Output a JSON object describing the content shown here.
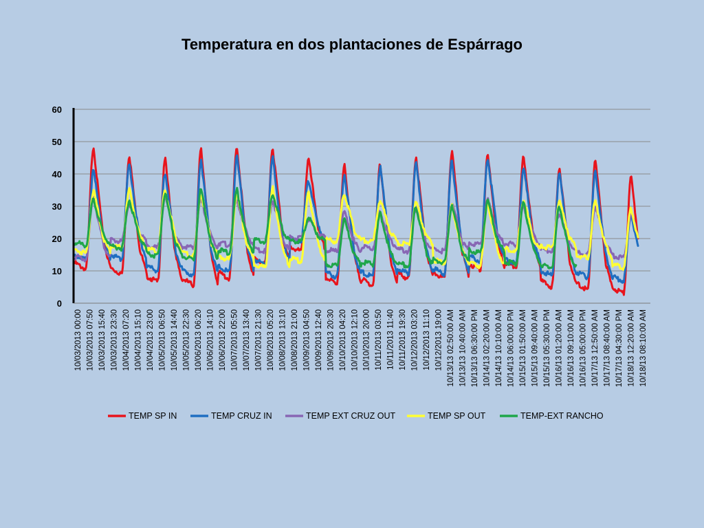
{
  "slide": {
    "title": "Temperatura  en dos plantaciones de Espárrago"
  },
  "chart_data": {
    "type": "line",
    "title": "Temperatura  en dos plantaciones de Espárrago",
    "xlabel": "",
    "ylabel": "",
    "ylim": [
      0,
      60
    ],
    "yticks": [
      0,
      10,
      20,
      30,
      40,
      50,
      60
    ],
    "grid": true,
    "legend_position": "bottom",
    "x_tick_labels": [
      "10/03/2013 00:00",
      "10/03/2013 07:50",
      "10/03/2013 15:40",
      "10/03/2013 23:30",
      "10/04/2013 07:20",
      "10/04/2013 15:10",
      "10/04/2013 23:00",
      "10/05/2013 06:50",
      "10/05/2013 14:40",
      "10/05/2013 22:30",
      "10/06/2013 06:20",
      "10/06/2013 14:10",
      "10/06/2013 22:00",
      "10/07/2013 05:50",
      "10/07/2013 13:40",
      "10/07/2013 21:30",
      "10/08/2013 05:20",
      "10/08/2013 13:10",
      "10/08/2013 21:00",
      "10/09/2013 04:50",
      "10/09/2013 12:40",
      "10/09/2013 20:30",
      "10/10/2013 04:20",
      "10/10/2013 12:10",
      "10/10/2013 20:00",
      "10/11/2013 03:50",
      "10/11/2013 11:40",
      "10/11/2013 19:30",
      "10/12/2013 03:20",
      "10/12/2013 11:10",
      "10/12/2013 19:00",
      "10/13/13 02:50:00 AM",
      "10/13/13 10:40:00 AM",
      "10/13/13 06:30:00 PM",
      "10/14/13 02:20:00 AM",
      "10/14/13 10:10:00 AM",
      "10/14/13 06:00:00 PM",
      "10/15/13 01:50:00 AM",
      "10/15/13 09:40:00 AM",
      "10/15/13 05:30:00 PM",
      "10/16/13 01:20:00 AM",
      "10/16/13 09:10:00 AM",
      "10/16/13 05:00:00 PM",
      "10/17/13 12:50:00 AM",
      "10/17/13 08:40:00 AM",
      "10/17/13 04:30:00 PM",
      "10/18/13 12:20:00 AM",
      "10/18/13 08:10:00 AM"
    ],
    "days": [
      "10/03",
      "10/04",
      "10/05",
      "10/06",
      "10/07",
      "10/08",
      "10/09",
      "10/10",
      "10/11",
      "10/12",
      "10/13",
      "10/14",
      "10/15",
      "10/16",
      "10/17",
      "10/18"
    ],
    "series": [
      {
        "name": "TEMP SP IN",
        "color": "#e8141c",
        "daily_min": [
          10.5,
          9,
          6.5,
          5.5,
          7.5,
          12,
          16,
          6,
          5.5,
          7.5,
          7.5,
          10.5,
          11,
          5,
          4,
          3
        ],
        "daily_max": [
          48.5,
          46,
          44.5,
          47.5,
          48.5,
          48,
          44.5,
          42.5,
          43,
          45.5,
          47,
          45.5,
          45.5,
          42,
          44.5,
          39
        ]
      },
      {
        "name": "TEMP CRUZ IN",
        "color": "#1f6ec1",
        "daily_min": [
          13.5,
          13.5,
          10,
          8.5,
          9.5,
          12,
          19,
          8,
          8,
          9,
          9,
          13,
          12,
          8.5,
          8,
          7
        ],
        "daily_max": [
          41,
          43,
          40.5,
          44.5,
          45.5,
          45,
          38,
          40,
          42,
          43.5,
          44,
          45,
          42,
          40,
          40.5,
          28
        ]
      },
      {
        "name": "TEMP EXT CRUZ OUT",
        "color": "#8866b4",
        "daily_min": [
          13.5,
          19,
          17,
          17,
          18,
          16,
          20,
          16,
          17,
          16,
          16,
          18,
          18,
          16,
          15,
          14
        ],
        "daily_max": [
          33,
          31,
          33,
          32,
          32,
          32,
          26,
          28,
          28,
          30,
          31,
          32,
          30,
          28,
          30,
          28
        ]
      },
      {
        "name": "TEMP SP OUT",
        "color": "#ffff33",
        "daily_min": [
          15.5,
          17,
          16,
          14.5,
          13.5,
          11,
          13,
          19,
          19,
          18,
          12.5,
          11.5,
          16,
          17,
          14,
          11
        ],
        "daily_max": [
          35,
          35,
          35,
          34,
          34,
          35.5,
          34,
          34,
          32,
          31,
          30,
          31,
          32,
          31.5,
          31.5,
          29.5
        ]
      },
      {
        "name": "TEMP-EXT RANCHO",
        "color": "#1fa64a",
        "daily_min": [
          18,
          17,
          14.5,
          13.5,
          15.5,
          19,
          19,
          11.5,
          12,
          11.5,
          12.5,
          15.5,
          12,
          11,
          null,
          null
        ],
        "daily_max": [
          32,
          32,
          34,
          35,
          35,
          34,
          26.5,
          26,
          27.5,
          30,
          30.5,
          31.5,
          31,
          30,
          null,
          null
        ]
      }
    ]
  }
}
